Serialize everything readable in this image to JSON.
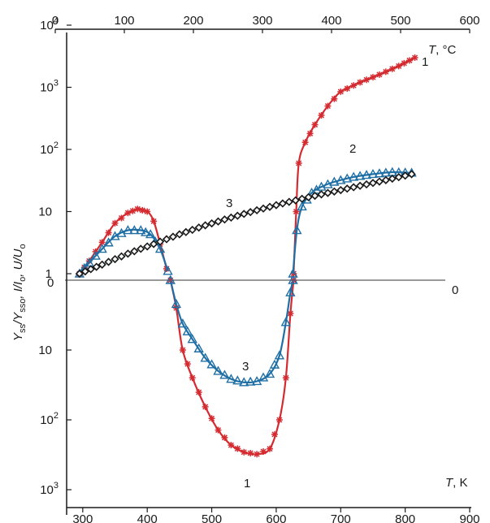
{
  "chart_data": {
    "type": "line",
    "x_bottom": {
      "label_var": "T",
      "label_unit": ", K",
      "range": [
        275,
        900
      ],
      "ticks": [
        "300",
        "400",
        "500",
        "600",
        "700",
        "800",
        "900"
      ]
    },
    "x_top": {
      "label_var": "T",
      "label_unit": ", °C",
      "range": [
        0,
        600
      ],
      "ticks": [
        "0",
        "100",
        "200",
        "300",
        "400",
        "500",
        "600"
      ]
    },
    "y_upper": {
      "scale": "log",
      "range": [
        0.7,
        10000
      ],
      "ticks": [
        {
          "value": 1,
          "base": "1",
          "exp": ""
        },
        {
          "value": 10,
          "base": "10",
          "exp": ""
        },
        {
          "value": 100,
          "base": "10",
          "exp": "2"
        },
        {
          "value": 1000,
          "base": "10",
          "exp": "3"
        },
        {
          "value": 10000,
          "base": "10",
          "exp": "4"
        }
      ]
    },
    "y_lower": {
      "scale": "log-inverted",
      "range": [
        1,
        1000
      ],
      "ticks": [
        {
          "value": 10,
          "base": "10",
          "exp": ""
        },
        {
          "value": 100,
          "base": "10",
          "exp": "2"
        },
        {
          "value": 1000,
          "base": "10",
          "exp": "3"
        }
      ]
    },
    "zero_label_left": "0",
    "zero_label_right": "0",
    "ylabel_parts": [
      "Y",
      "ss",
      "/Y",
      "sso",
      ", I/I",
      "o",
      ", U/U",
      "o"
    ],
    "annotations": {
      "curve1_upper": "1",
      "curve2_upper": "2",
      "curve3_upper": "3",
      "curve3_lower": "3",
      "curve1_lower": "1"
    },
    "colors": {
      "series1": "#d42b30",
      "series2": "#1f6fa5",
      "series3_line": "#8fb59a",
      "series3_marker": "#1a1a1a",
      "zero_line": "#9a9a9a",
      "axis": "#1a1a1a"
    },
    "series": [
      {
        "id": "1",
        "marker": "asterisk",
        "upper": [
          [
            295,
            1
          ],
          [
            310,
            1.6
          ],
          [
            330,
            3.2
          ],
          [
            350,
            6.5
          ],
          [
            370,
            9.5
          ],
          [
            385,
            11
          ],
          [
            400,
            10
          ],
          [
            410,
            7
          ],
          [
            420,
            3
          ],
          [
            430,
            1.2
          ]
        ],
        "lower": [
          [
            436,
            1
          ],
          [
            445,
            2.5
          ],
          [
            455,
            10
          ],
          [
            470,
            25
          ],
          [
            490,
            65
          ],
          [
            510,
            140
          ],
          [
            530,
            230
          ],
          [
            550,
            290
          ],
          [
            570,
            310
          ],
          [
            590,
            260
          ],
          [
            605,
            100
          ],
          [
            615,
            25
          ],
          [
            622,
            3
          ],
          [
            627,
            1
          ]
        ],
        "upper2": [
          [
            627,
            1
          ],
          [
            631,
            10
          ],
          [
            635,
            60
          ],
          [
            645,
            130
          ],
          [
            660,
            250
          ],
          [
            680,
            500
          ],
          [
            700,
            850
          ],
          [
            730,
            1200
          ],
          [
            760,
            1600
          ],
          [
            790,
            2200
          ],
          [
            815,
            3000
          ]
        ]
      },
      {
        "id": "2",
        "marker": "triangle",
        "upper": [
          [
            295,
            1
          ],
          [
            310,
            1.5
          ],
          [
            330,
            2.5
          ],
          [
            350,
            4
          ],
          [
            370,
            5
          ],
          [
            390,
            5
          ],
          [
            405,
            4.3
          ],
          [
            420,
            2.5
          ],
          [
            432,
            1.1
          ]
        ],
        "lower": [
          [
            436,
            1
          ],
          [
            445,
            2.2
          ],
          [
            455,
            4.2
          ],
          [
            470,
            7
          ],
          [
            490,
            13
          ],
          [
            510,
            20
          ],
          [
            530,
            26
          ],
          [
            550,
            29
          ],
          [
            570,
            28
          ],
          [
            590,
            22
          ],
          [
            605,
            12
          ],
          [
            615,
            4
          ],
          [
            622,
            1.5
          ],
          [
            626,
            1
          ]
        ],
        "upper2": [
          [
            626,
            1
          ],
          [
            632,
            5
          ],
          [
            640,
            12
          ],
          [
            655,
            20
          ],
          [
            670,
            25
          ],
          [
            690,
            30
          ],
          [
            720,
            36
          ],
          [
            750,
            40
          ],
          [
            780,
            43
          ],
          [
            810,
            42
          ]
        ]
      },
      {
        "id": "3",
        "marker": "diamond",
        "upper": [
          [
            295,
            1
          ],
          [
            330,
            1.4
          ],
          [
            370,
            2.1
          ],
          [
            410,
            3
          ],
          [
            450,
            4.3
          ],
          [
            490,
            6
          ],
          [
            530,
            8
          ],
          [
            570,
            10.5
          ],
          [
            610,
            13.5
          ],
          [
            650,
            17
          ],
          [
            690,
            21
          ],
          [
            730,
            26
          ],
          [
            770,
            32
          ],
          [
            810,
            40
          ]
        ]
      }
    ]
  }
}
